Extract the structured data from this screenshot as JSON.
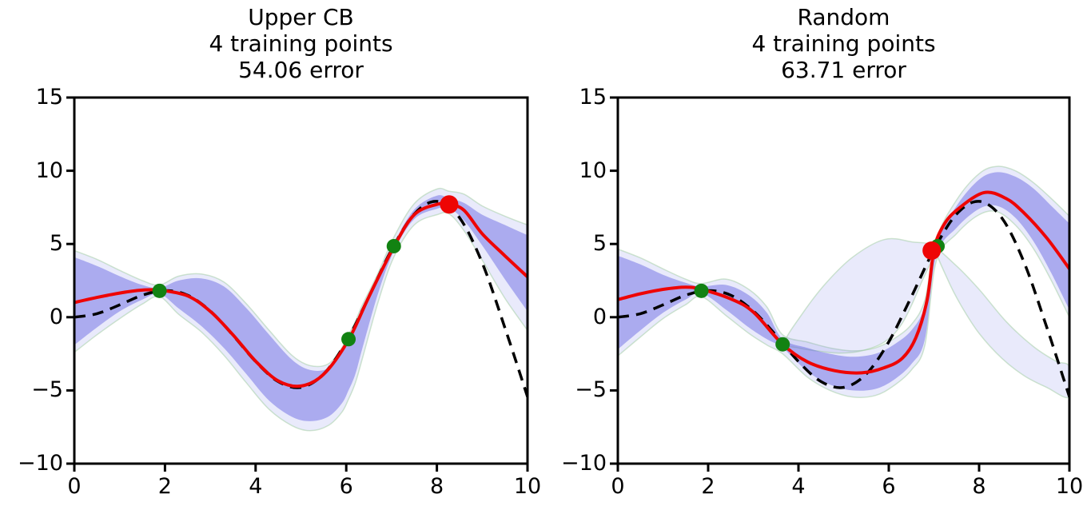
{
  "chart_data": {
    "type": "line",
    "xlim": [
      0,
      10
    ],
    "ylim": [
      -10,
      15
    ],
    "x_tick_labels": [
      "0",
      "2",
      "4",
      "6",
      "8",
      "10"
    ],
    "x_tick_values": [
      0,
      2,
      4,
      6,
      8,
      10
    ],
    "y_tick_labels": [
      "15",
      "10",
      "5",
      "0",
      "−5",
      "−10"
    ],
    "y_tick_values": [
      15,
      10,
      5,
      0,
      -5,
      -10
    ],
    "grid": false,
    "legend": "none",
    "series_roles": {
      "truth": "true objective function (dashed black)",
      "mean": "GP posterior mean (red)",
      "band": "confidence band (blue)",
      "light": "wider/previous confidence band (light lavender)",
      "train_points": "training points (green dots)",
      "new_point": "newly selected sample (red dot)"
    },
    "panels": [
      {
        "title_lines": [
          "Upper CB",
          "4 training points",
          "54.06 error"
        ],
        "truth": {
          "x": [
            0,
            0.5,
            1,
            1.5,
            2,
            2.5,
            3,
            3.5,
            4,
            4.5,
            5,
            5.5,
            6,
            6.5,
            7,
            7.5,
            8,
            8.5,
            9,
            9.5,
            10
          ],
          "y": [
            0,
            0.24,
            0.84,
            1.5,
            1.82,
            1.5,
            0.42,
            -1.23,
            -3.03,
            -4.4,
            -4.79,
            -3.88,
            -1.68,
            1.4,
            4.6,
            7.04,
            7.91,
            6.79,
            3.71,
            -0.71,
            -5.44
          ]
        },
        "mean": [
          [
            0,
            1.0
          ],
          [
            0.5,
            1.35
          ],
          [
            1,
            1.65
          ],
          [
            1.5,
            1.85
          ],
          [
            1.88,
            1.85
          ],
          [
            2.5,
            1.45
          ],
          [
            3,
            0.4
          ],
          [
            3.5,
            -1.2
          ],
          [
            4,
            -3.0
          ],
          [
            4.5,
            -4.35
          ],
          [
            5,
            -4.7
          ],
          [
            5.5,
            -3.9
          ],
          [
            6.05,
            -1.55
          ],
          [
            6.5,
            1.4
          ],
          [
            7.05,
            4.8
          ],
          [
            7.5,
            7.0
          ],
          [
            8.0,
            7.7
          ],
          [
            8.27,
            7.72
          ],
          [
            8.6,
            7.3
          ],
          [
            9,
            5.7
          ],
          [
            9.5,
            4.2
          ],
          [
            10,
            2.75
          ]
        ],
        "band": {
          "x": [
            0,
            0.5,
            1,
            1.5,
            1.88,
            2.3,
            2.8,
            3.3,
            3.8,
            4.3,
            4.8,
            5.2,
            5.6,
            5.9,
            6.05,
            6.2,
            6.35,
            6.7,
            7.05,
            7.5,
            8.0,
            8.27,
            8.6,
            9.0,
            9.5,
            10
          ],
          "top": [
            4.1,
            3.5,
            2.8,
            2.2,
            2.0,
            2.5,
            2.65,
            2.1,
            0.6,
            -1.2,
            -2.9,
            -3.6,
            -3.5,
            -2.4,
            -1.55,
            -0.7,
            0.3,
            2.5,
            5.0,
            7.35,
            8.3,
            8.1,
            7.8,
            7.0,
            6.3,
            5.6
          ],
          "bottom": [
            -1.9,
            -0.7,
            0.4,
            1.2,
            1.6,
            0.6,
            -0.6,
            -2.1,
            -3.9,
            -5.7,
            -6.8,
            -7.1,
            -6.8,
            -5.9,
            -5.0,
            -3.9,
            -2.2,
            1.6,
            4.5,
            6.7,
            7.4,
            7.45,
            6.6,
            4.9,
            2.6,
            0.4
          ]
        },
        "light": {
          "x": [
            0,
            0.5,
            1,
            1.5,
            1.88,
            2.3,
            2.8,
            3.3,
            3.8,
            4.3,
            4.8,
            5.2,
            5.6,
            5.9,
            6.05,
            6.2,
            6.35,
            6.7,
            7.05,
            7.5,
            8.0,
            8.27,
            8.6,
            9.0,
            9.5,
            10
          ],
          "top": [
            4.55,
            3.95,
            3.2,
            2.5,
            2.2,
            2.8,
            2.95,
            2.4,
            0.9,
            -0.9,
            -2.6,
            -3.3,
            -3.2,
            -2.1,
            -1.2,
            -0.3,
            0.8,
            3.0,
            5.45,
            7.75,
            8.75,
            8.6,
            8.4,
            7.6,
            6.9,
            6.3
          ],
          "bottom": [
            -2.4,
            -1.2,
            -0.1,
            0.9,
            1.4,
            0.2,
            -1.0,
            -2.6,
            -4.5,
            -6.3,
            -7.4,
            -7.75,
            -7.4,
            -6.5,
            -5.6,
            -4.5,
            -2.9,
            1.0,
            4.1,
            6.3,
            7.0,
            7.05,
            5.9,
            3.9,
            1.3,
            -0.9
          ]
        },
        "light_blobs": [],
        "train_points": [
          [
            1.88,
            1.8
          ],
          [
            6.05,
            -1.5
          ],
          [
            7.05,
            4.85
          ]
        ],
        "new_point": [
          8.27,
          7.7
        ]
      },
      {
        "title_lines": [
          "Random",
          "4 training points",
          "63.71 error"
        ],
        "truth": {
          "x": [
            0,
            0.5,
            1,
            1.5,
            2,
            2.5,
            3,
            3.5,
            4,
            4.5,
            5,
            5.5,
            6,
            6.5,
            7,
            7.5,
            8,
            8.5,
            9,
            9.5,
            10
          ],
          "y": [
            0,
            0.24,
            0.84,
            1.5,
            1.82,
            1.5,
            0.42,
            -1.23,
            -3.03,
            -4.4,
            -4.79,
            -3.88,
            -1.68,
            1.4,
            4.6,
            7.04,
            7.91,
            6.79,
            3.71,
            -0.71,
            -5.44
          ]
        },
        "mean": [
          [
            0,
            1.2
          ],
          [
            0.5,
            1.6
          ],
          [
            1,
            1.9
          ],
          [
            1.5,
            2.05
          ],
          [
            1.85,
            1.9
          ],
          [
            2.5,
            1.25
          ],
          [
            3,
            0.35
          ],
          [
            3.65,
            -1.85
          ],
          [
            4.2,
            -3.05
          ],
          [
            4.8,
            -3.65
          ],
          [
            5.4,
            -3.8
          ],
          [
            5.9,
            -3.45
          ],
          [
            6.3,
            -2.8
          ],
          [
            6.6,
            -1.4
          ],
          [
            6.85,
            1.2
          ],
          [
            7.0,
            4.6
          ],
          [
            7.2,
            6.2
          ],
          [
            7.5,
            7.3
          ],
          [
            8.1,
            8.5
          ],
          [
            8.6,
            8.1
          ],
          [
            9.0,
            7.1
          ],
          [
            9.5,
            5.4
          ],
          [
            10,
            3.3
          ]
        ],
        "band": {
          "x": [
            0,
            0.5,
            1,
            1.5,
            1.85,
            2.4,
            2.9,
            3.3,
            3.65,
            4.2,
            4.7,
            5.2,
            5.7,
            6.1,
            6.5,
            6.8,
            7.05,
            7.5,
            8.0,
            8.4,
            8.8,
            9.2,
            9.6,
            10
          ],
          "top": [
            4.2,
            3.6,
            2.9,
            2.35,
            2.1,
            2.2,
            1.5,
            0.3,
            -1.5,
            -2.1,
            -2.5,
            -2.7,
            -2.5,
            -1.9,
            -0.9,
            0.8,
            4.95,
            7.6,
            9.4,
            9.9,
            9.6,
            8.8,
            7.6,
            6.4
          ],
          "bottom": [
            -2.2,
            -0.9,
            0.3,
            1.2,
            1.65,
            0.5,
            -0.7,
            -1.5,
            -2.1,
            -3.7,
            -4.6,
            -5.0,
            -4.9,
            -4.3,
            -3.2,
            -1.5,
            4.15,
            6.1,
            7.4,
            7.6,
            6.8,
            5.2,
            3.0,
            0.5
          ]
        },
        "light": {
          "x": [
            0,
            0.5,
            1,
            1.5,
            1.85,
            2.4,
            2.9,
            3.3,
            3.65,
            4.2,
            4.7,
            5.2,
            5.7,
            6.1,
            6.5,
            6.8,
            7.05,
            7.5,
            8.0,
            8.4,
            8.8,
            9.2,
            9.6,
            10
          ],
          "top": [
            4.65,
            4.05,
            3.3,
            2.6,
            2.3,
            2.6,
            1.9,
            0.7,
            -1.2,
            -1.7,
            -2.1,
            -2.3,
            -2.1,
            -1.5,
            -0.5,
            1.2,
            5.3,
            8.0,
            9.8,
            10.3,
            10.0,
            9.2,
            8.1,
            6.9
          ],
          "bottom": [
            -2.65,
            -1.35,
            -0.1,
            0.85,
            1.4,
            0.1,
            -1.1,
            -1.9,
            -2.5,
            -4.1,
            -5.0,
            -5.45,
            -5.35,
            -4.7,
            -3.6,
            -1.9,
            3.8,
            5.7,
            7.0,
            7.2,
            6.3,
            4.7,
            2.5,
            0.0
          ]
        },
        "light_blobs": [
          [
            [
              3.7,
              -1.7
            ],
            [
              4.1,
              0.3
            ],
            [
              4.6,
              2.3
            ],
            [
              5.2,
              4.1
            ],
            [
              5.9,
              5.3
            ],
            [
              6.5,
              5.15
            ],
            [
              7.0,
              4.7
            ],
            [
              6.7,
              2.2
            ],
            [
              6.3,
              -0.4
            ],
            [
              5.9,
              -1.7
            ],
            [
              5.4,
              -2.3
            ],
            [
              4.9,
              -2.45
            ],
            [
              4.4,
              -2.3
            ],
            [
              4.0,
              -2.1
            ]
          ],
          [
            [
              7.05,
              4.6
            ],
            [
              7.5,
              3.5
            ],
            [
              8.0,
              1.9
            ],
            [
              8.6,
              -0.3
            ],
            [
              9.2,
              -2.0
            ],
            [
              9.7,
              -3.0
            ],
            [
              10,
              -3.4
            ],
            [
              10,
              -5.45
            ],
            [
              9.5,
              -4.8
            ],
            [
              9.0,
              -4.0
            ],
            [
              8.5,
              -2.8
            ],
            [
              8.0,
              -1.1
            ],
            [
              7.6,
              0.8
            ],
            [
              7.3,
              2.6
            ]
          ]
        ],
        "train_points": [
          [
            1.85,
            1.8
          ],
          [
            3.65,
            -1.85
          ],
          [
            7.08,
            4.85
          ]
        ],
        "new_point": [
          6.95,
          4.55
        ]
      }
    ],
    "colors": {
      "band_dark": "rgba(96,96,224,0.45)",
      "band_light": "rgba(110,115,228,0.15)",
      "band_light_edge": "rgba(150,200,150,0.45)",
      "mean_line": "#ee0505",
      "truth_line": "#000000",
      "train_point": "#128212",
      "new_point": "#ee0505",
      "axis": "#000000",
      "background": "#ffffff"
    }
  }
}
